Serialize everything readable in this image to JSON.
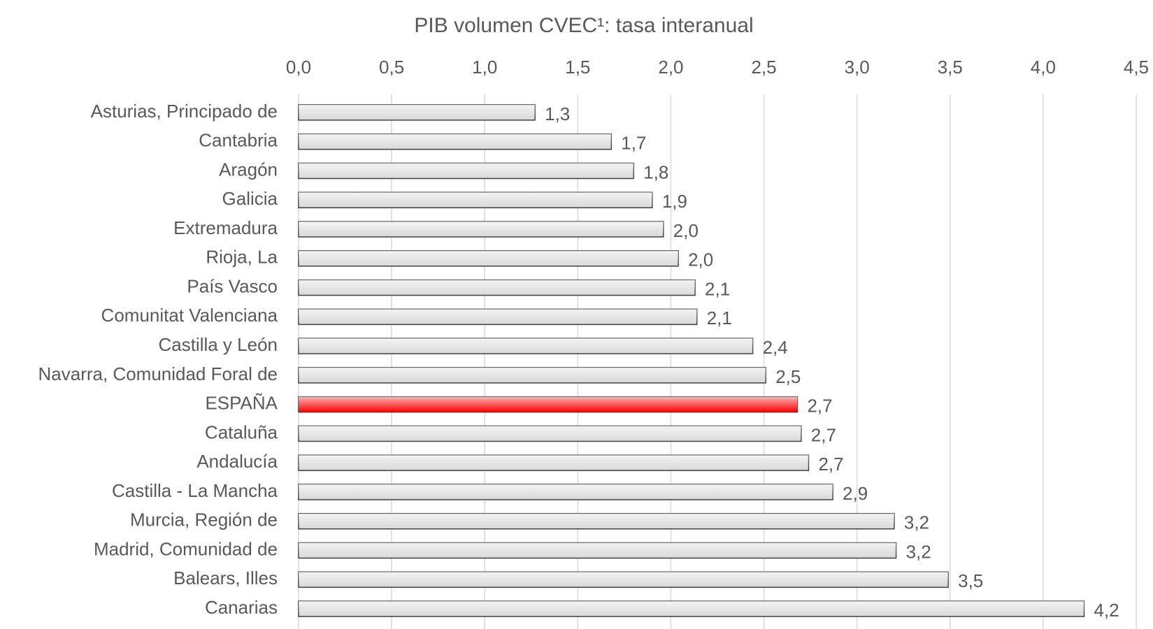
{
  "chart_data": {
    "type": "barh",
    "title": "PIB volumen CVEC¹: tasa interanual",
    "categories": [
      "Asturias, Principado de",
      "Cantabria",
      "Aragón",
      "Galicia",
      "Extremadura",
      "Rioja, La",
      "País Vasco",
      "Comunitat Valenciana",
      "Castilla y León",
      "Navarra, Comunidad Foral de",
      "ESPAÑA",
      "Cataluña",
      "Andalucía",
      "Castilla - La Mancha",
      "Murcia, Región de",
      "Madrid, Comunidad de",
      "Balears, Illes",
      "Canarias"
    ],
    "values": [
      1.27,
      1.68,
      1.8,
      1.9,
      1.96,
      2.04,
      2.13,
      2.14,
      2.44,
      2.51,
      2.68,
      2.7,
      2.74,
      2.87,
      3.2,
      3.21,
      3.49,
      4.22
    ],
    "value_labels": [
      "1,3",
      "1,7",
      "1,8",
      "1,9",
      "2,0",
      "2,0",
      "2,1",
      "2,1",
      "2,4",
      "2,5",
      "2,7",
      "2,7",
      "2,7",
      "2,9",
      "3,2",
      "3,2",
      "3,5",
      "4,2"
    ],
    "colors": [
      "#d9d9d9",
      "#d9d9d9",
      "#d9d9d9",
      "#d9d9d9",
      "#d9d9d9",
      "#d9d9d9",
      "#d9d9d9",
      "#d9d9d9",
      "#d9d9d9",
      "#d9d9d9",
      "#ff0000",
      "#d9d9d9",
      "#d9d9d9",
      "#d9d9d9",
      "#d9d9d9",
      "#d9d9d9",
      "#d9d9d9",
      "#d9d9d9"
    ],
    "xlim": [
      0,
      4.5
    ],
    "xticks": [
      {
        "value": 0,
        "label": "0,0"
      },
      {
        "value": 0.5,
        "label": "0,5"
      },
      {
        "value": 1,
        "label": "1,0"
      },
      {
        "value": 1.5,
        "label": "1,5"
      },
      {
        "value": 2,
        "label": "2,0"
      },
      {
        "value": 2.5,
        "label": "2,5"
      },
      {
        "value": 3,
        "label": "3,0"
      },
      {
        "value": 3.5,
        "label": "3,5"
      },
      {
        "value": 4,
        "label": "4,0"
      },
      {
        "value": 4.5,
        "label": "4,5"
      }
    ],
    "grid": true
  }
}
